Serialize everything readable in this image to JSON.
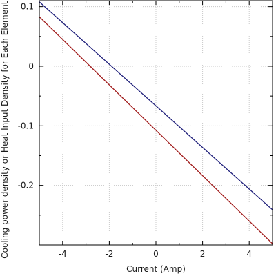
{
  "chart_data": {
    "type": "line",
    "title": "",
    "xlabel": "Current (Amp)",
    "ylabel": "Cooling power density or Heat Input Density for Each Element (W",
    "xlim": [
      -5,
      5
    ],
    "ylim": [
      -0.3,
      0.11
    ],
    "grid": true,
    "legend": "none",
    "x_ticks": [
      {
        "value": -4,
        "label": "-4"
      },
      {
        "value": -2,
        "label": "-2"
      },
      {
        "value": 0,
        "label": "0"
      },
      {
        "value": 2,
        "label": "2"
      },
      {
        "value": 4,
        "label": "4"
      }
    ],
    "x_minor_ticks": [
      -5,
      -3,
      -1,
      1,
      3,
      5
    ],
    "y_ticks": [
      {
        "value": 0.1,
        "label": "0.1"
      },
      {
        "value": 0,
        "label": "0"
      },
      {
        "value": -0.1,
        "label": "-0.1"
      },
      {
        "value": -0.2,
        "label": "-0.2"
      }
    ],
    "y_minor_ticks": [
      0.05,
      -0.05,
      -0.15,
      -0.25
    ],
    "series": [
      {
        "color": "#1f1f7a",
        "x": [
          -5,
          5
        ],
        "y": [
          0.108,
          -0.241
        ]
      },
      {
        "color": "#a01a1a",
        "x": [
          -5,
          5
        ],
        "y": [
          0.083,
          -0.298
        ]
      }
    ]
  }
}
